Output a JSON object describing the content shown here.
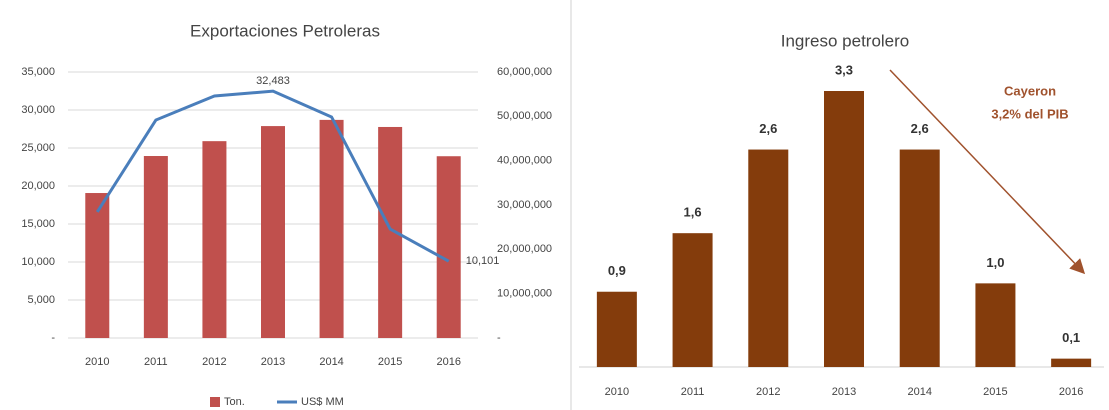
{
  "chart_data": [
    {
      "type": "bar-line",
      "title": "Exportaciones Petroleras",
      "categories": [
        "2010",
        "2011",
        "2012",
        "2013",
        "2014",
        "2015",
        "2016"
      ],
      "series": [
        {
          "name": "Ton.",
          "type": "bar",
          "axis": "y2",
          "color": "#c0504d",
          "values": [
            32700000,
            41050000,
            44400000,
            47800000,
            49200000,
            47600000,
            41000000
          ]
        },
        {
          "name": "US$ MM",
          "type": "line",
          "color": "#4a7ebb",
          "values": [
            16580,
            28680,
            31840,
            32483,
            29080,
            14340,
            10101
          ],
          "value_labels": [
            null,
            null,
            null,
            "32,483",
            null,
            null,
            "10,101"
          ]
        }
      ],
      "ylim": [
        0,
        35000
      ],
      "yticks": [
        {
          "value": 0,
          "label": "-"
        },
        {
          "value": 5000,
          "label": "5,000"
        },
        {
          "value": 10000,
          "label": "10,000"
        },
        {
          "value": 15000,
          "label": "15,000"
        },
        {
          "value": 20000,
          "label": "20,000"
        },
        {
          "value": 25000,
          "label": "25,000"
        },
        {
          "value": 30000,
          "label": "30,000"
        },
        {
          "value": 35000,
          "label": "35,000"
        }
      ],
      "y2lim": [
        0,
        60000000
      ],
      "y2ticks": [
        {
          "value": 0,
          "label": "-"
        },
        {
          "value": 10000000,
          "label": "10,000,000"
        },
        {
          "value": 20000000,
          "label": "20,000,000"
        },
        {
          "value": 30000000,
          "label": "30,000,000"
        },
        {
          "value": 40000000,
          "label": "40,000,000"
        },
        {
          "value": 50000000,
          "label": "50,000,000"
        },
        {
          "value": 60000000,
          "label": "60,000,000"
        }
      ],
      "grid": true,
      "legend": "bottom"
    },
    {
      "type": "bar",
      "title": "Ingreso petrolero",
      "categories": [
        "2010",
        "2011",
        "2012",
        "2013",
        "2014",
        "2015",
        "2016"
      ],
      "values": [
        0.9,
        1.6,
        2.6,
        3.3,
        2.6,
        1.0,
        0.1
      ],
      "value_labels": [
        "0,9",
        "1,6",
        "2,6",
        "3,3",
        "2,6",
        "1,0",
        "0,1"
      ],
      "color": "#843c0c",
      "ylim": [
        0,
        3.3
      ],
      "annotation": [
        "Cayeron",
        "3,2% del PIB"
      ]
    }
  ]
}
